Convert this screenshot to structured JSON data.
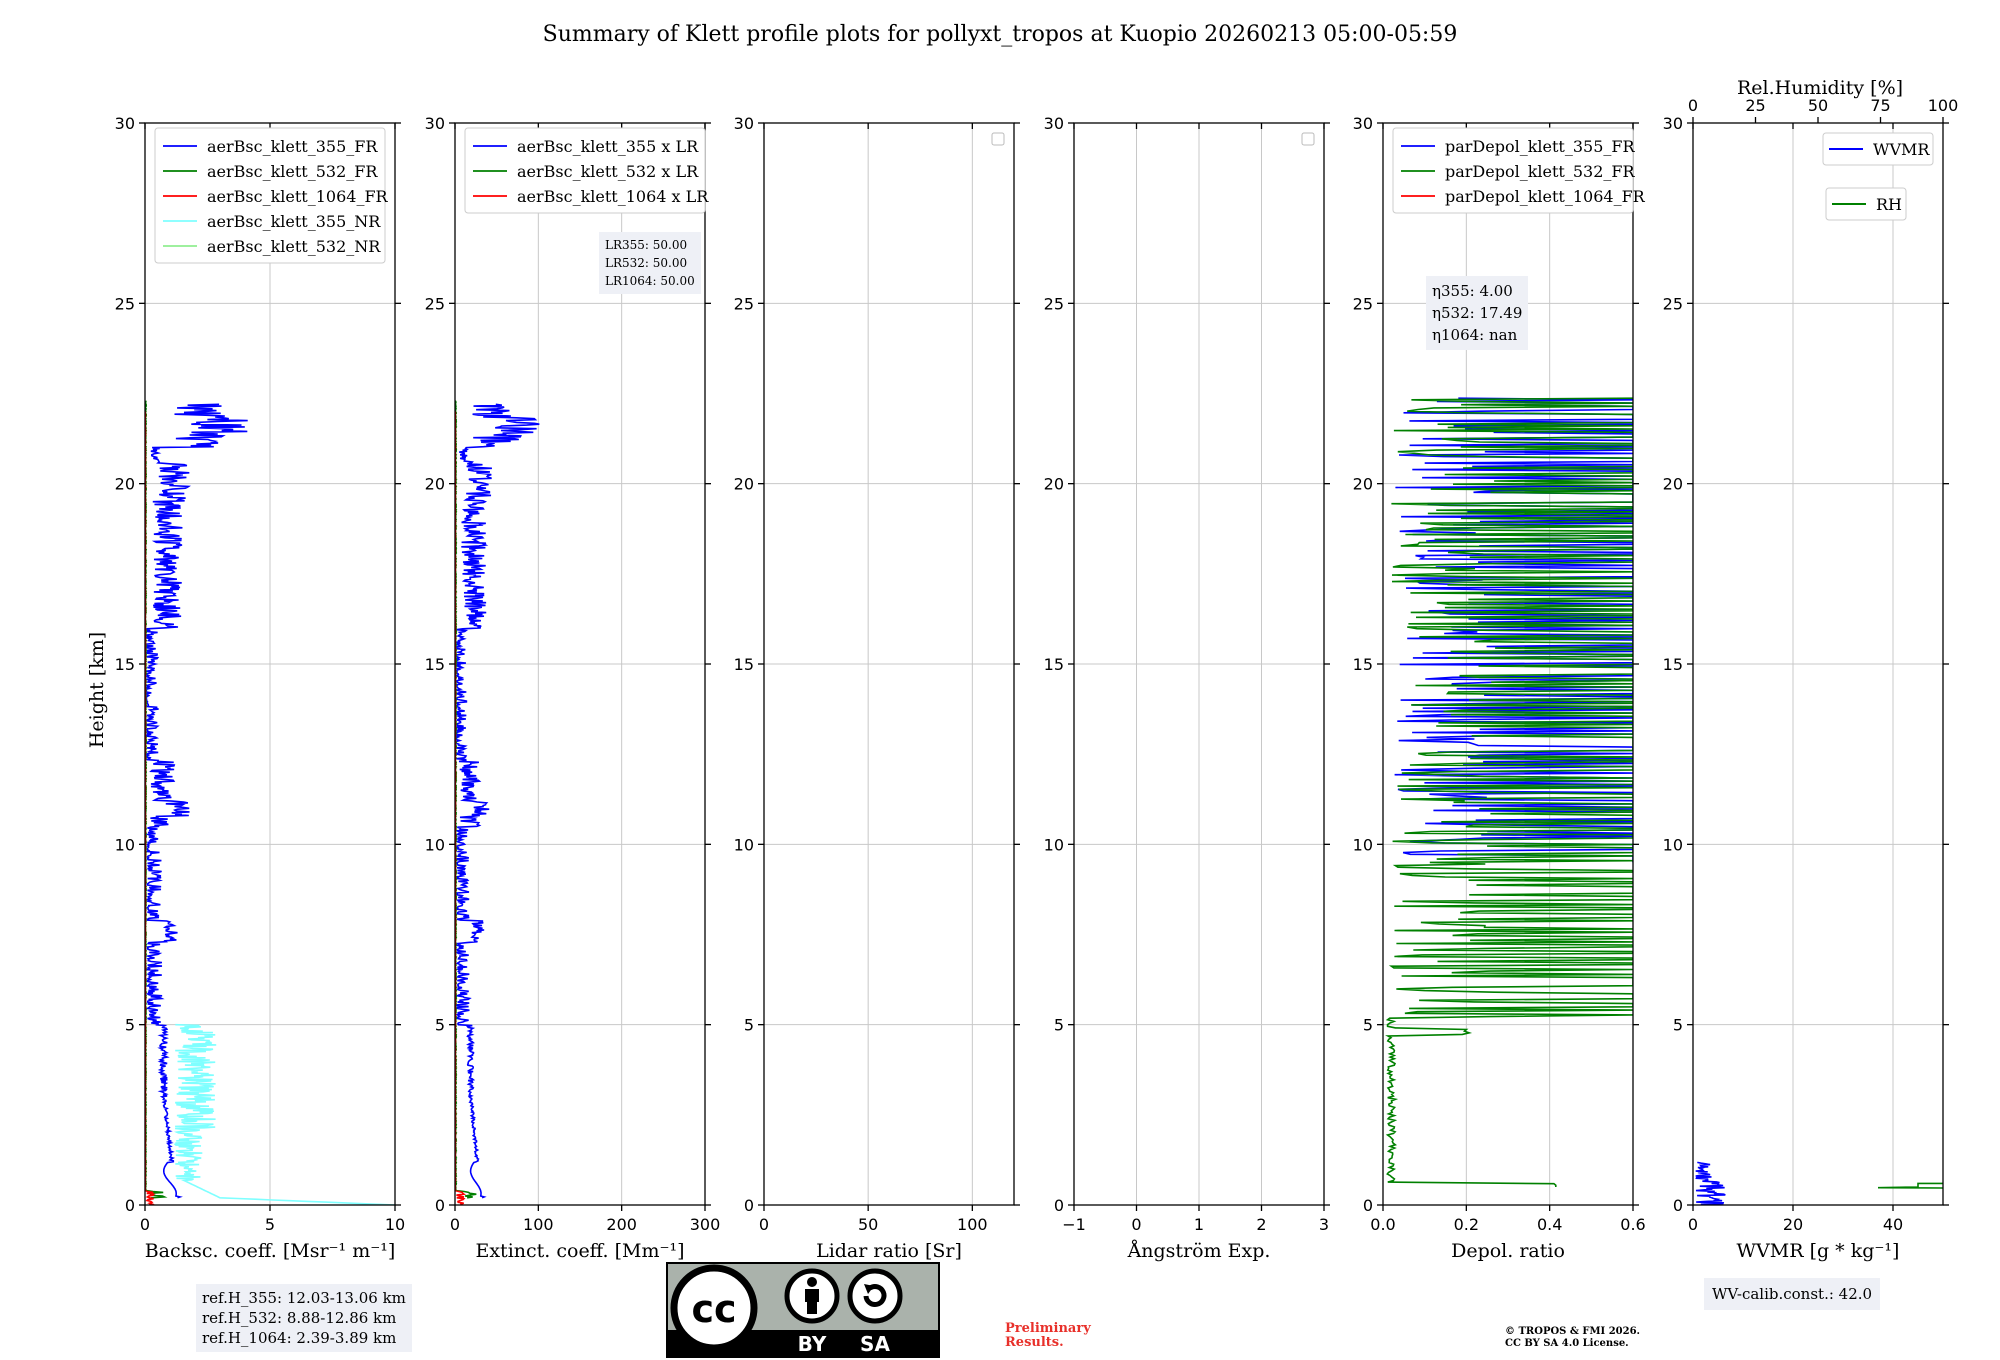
{
  "title": "Summary of Klett profile plots for pollyxt_tropos at Kuopio 20260213 05:00-05:59",
  "colors": {
    "blue": "#0000ff",
    "green": "#008000",
    "red": "#ff0000",
    "cyan": "#7fffff",
    "lightgreen": "#90ee90",
    "grid": "#c8c8c8",
    "box": "#eef0f6"
  },
  "chart_data": [
    {
      "type": "line",
      "id": "backscatter",
      "xlabel": "Backsc. coeff. [Msr⁻¹ m⁻¹]",
      "ylabel": "Height [km]",
      "xlim": [
        0,
        10
      ],
      "xticks": [
        0,
        5,
        10
      ],
      "xtick_labels": [
        "0",
        "5",
        "10"
      ],
      "ylim": [
        0,
        30
      ],
      "yticks": [
        0,
        5,
        10,
        15,
        20,
        25,
        30
      ],
      "grid": true,
      "legend": [
        "aerBsc_klett_355_FR",
        "aerBsc_klett_532_FR",
        "aerBsc_klett_1064_FR",
        "aerBsc_klett_355_NR",
        "aerBsc_klett_532_NR"
      ],
      "series": [
        {
          "name": "aerBsc_klett_355_FR",
          "color": "blue",
          "kind": "profile",
          "scale": 1.0,
          "top": 22.2,
          "bottom": 0.2
        },
        {
          "name": "aerBsc_klett_532_FR",
          "color": "green",
          "kind": "low",
          "scale": 0.25,
          "top": 22.3,
          "bottom": 0.2
        },
        {
          "name": "aerBsc_klett_1064_FR",
          "color": "red",
          "kind": "low",
          "scale": 0.1,
          "top": 22.0,
          "bottom": 0.0
        },
        {
          "name": "aerBsc_klett_355_NR",
          "color": "cyan",
          "kind": "nr",
          "scale": 1.0,
          "top": 5.0,
          "bottom": 0.0
        },
        {
          "name": "aerBsc_klett_532_NR",
          "color": "lightgreen",
          "kind": "nr",
          "scale": 0.3,
          "top": 0.0,
          "bottom": 0.0
        }
      ]
    },
    {
      "type": "line",
      "id": "extinction",
      "xlabel": "Extinct. coeff. [Mm⁻¹]",
      "xlim": [
        0,
        300
      ],
      "xticks": [
        0,
        100,
        200,
        300
      ],
      "xtick_labels": [
        "0",
        "100",
        "200",
        "300"
      ],
      "ylim": [
        0,
        30
      ],
      "yticks": [
        0,
        5,
        10,
        15,
        20,
        25,
        30
      ],
      "grid": true,
      "legend": [
        "aerBsc_klett_355 x LR",
        "aerBsc_klett_532 x LR",
        "aerBsc_klett_1064 x LR"
      ],
      "series": [
        {
          "name": "aerBsc_klett_355 x LR",
          "color": "blue",
          "kind": "profile",
          "scale": 25.0,
          "top": 22.2,
          "bottom": 0.2
        },
        {
          "name": "aerBsc_klett_532 x LR",
          "color": "green",
          "kind": "low",
          "scale": 8.0,
          "top": 22.3,
          "bottom": 0.2
        },
        {
          "name": "aerBsc_klett_1064 x LR",
          "color": "red",
          "kind": "low",
          "scale": 3.0,
          "top": 22.0,
          "bottom": 0.0
        }
      ]
    },
    {
      "type": "line",
      "id": "lidar-ratio",
      "xlabel": "Lidar ratio [Sr]",
      "xlim": [
        0,
        120
      ],
      "xticks": [
        0,
        50,
        100
      ],
      "xtick_labels": [
        "0",
        "50",
        "100"
      ],
      "ylim": [
        0,
        30
      ],
      "yticks": [
        0,
        5,
        10,
        15,
        20,
        25,
        30
      ],
      "grid": true,
      "legend": [],
      "series": []
    },
    {
      "type": "line",
      "id": "angstrom",
      "xlabel": "Ångström Exp.",
      "xlim": [
        -1,
        3
      ],
      "xticks": [
        -1,
        0,
        1,
        2,
        3
      ],
      "xtick_labels": [
        "−1",
        "0",
        "1",
        "2",
        "3"
      ],
      "ylim": [
        0,
        30
      ],
      "yticks": [
        0,
        5,
        10,
        15,
        20,
        25,
        30
      ],
      "grid": true,
      "legend": [],
      "series": []
    },
    {
      "type": "line",
      "id": "depol",
      "xlabel": "Depol. ratio",
      "xlim": [
        0,
        0.6
      ],
      "xticks": [
        0,
        0.2,
        0.4,
        0.6
      ],
      "xtick_labels": [
        "0.0",
        "0.2",
        "0.4",
        "0.6"
      ],
      "ylim": [
        0,
        30
      ],
      "yticks": [
        0,
        5,
        10,
        15,
        20,
        25,
        30
      ],
      "grid": true,
      "legend": [
        "parDepol_klett_355_FR",
        "parDepol_klett_532_FR",
        "parDepol_klett_1064_FR"
      ],
      "series": [
        {
          "name": "parDepol_klett_355_FR",
          "color": "blue",
          "kind": "depol",
          "top": 22.4,
          "bottom": 9.5
        },
        {
          "name": "parDepol_klett_532_FR",
          "color": "green",
          "kind": "depol",
          "top": 22.4,
          "bottom": 0.5
        }
      ]
    },
    {
      "type": "line",
      "id": "wvmr",
      "xlabel": "WVMR [g * kg⁻¹]",
      "x2label": "Rel.Humidity [%]",
      "xlim": [
        0,
        50
      ],
      "xticks": [
        0,
        20,
        40
      ],
      "xtick_labels": [
        "0",
        "20",
        "40"
      ],
      "x2lim": [
        0,
        100
      ],
      "x2ticks": [
        0,
        25,
        50,
        75,
        100
      ],
      "x2tick_labels": [
        "0",
        "25",
        "50",
        "75",
        "100"
      ],
      "ylim": [
        0,
        30
      ],
      "yticks": [
        0,
        5,
        10,
        15,
        20,
        25,
        30
      ],
      "grid": true,
      "legend": [
        "WVMR",
        "RH"
      ],
      "series": [
        {
          "name": "WVMR",
          "color": "blue",
          "kind": "wvmr",
          "top": 1.2,
          "bottom": 0.0
        },
        {
          "name": "RH",
          "color": "green",
          "kind": "rh",
          "top": 0.6,
          "bottom": 0.45
        }
      ]
    }
  ],
  "annotations": {
    "lr_box": [
      "LR355: 50.00",
      "LR532: 50.00",
      "LR1064: 50.00"
    ],
    "eta_box": [
      "η355: 4.00",
      "η532: 17.49",
      "η1064: nan"
    ],
    "ref_box": [
      "ref.H_355: 12.03-13.06 km",
      "ref.H_532: 8.88-12.86 km",
      "ref.H_1064: 2.39-3.89 km"
    ],
    "wv_box": "WV-calib.const.: 42.0",
    "preliminary": [
      "Preliminary",
      "Results."
    ],
    "copyright": [
      "© TROPOS & FMI 2026.",
      "CC BY SA 4.0 License."
    ],
    "license_logo": {
      "cc": "cc",
      "by": "BY",
      "sa": "SA"
    }
  }
}
